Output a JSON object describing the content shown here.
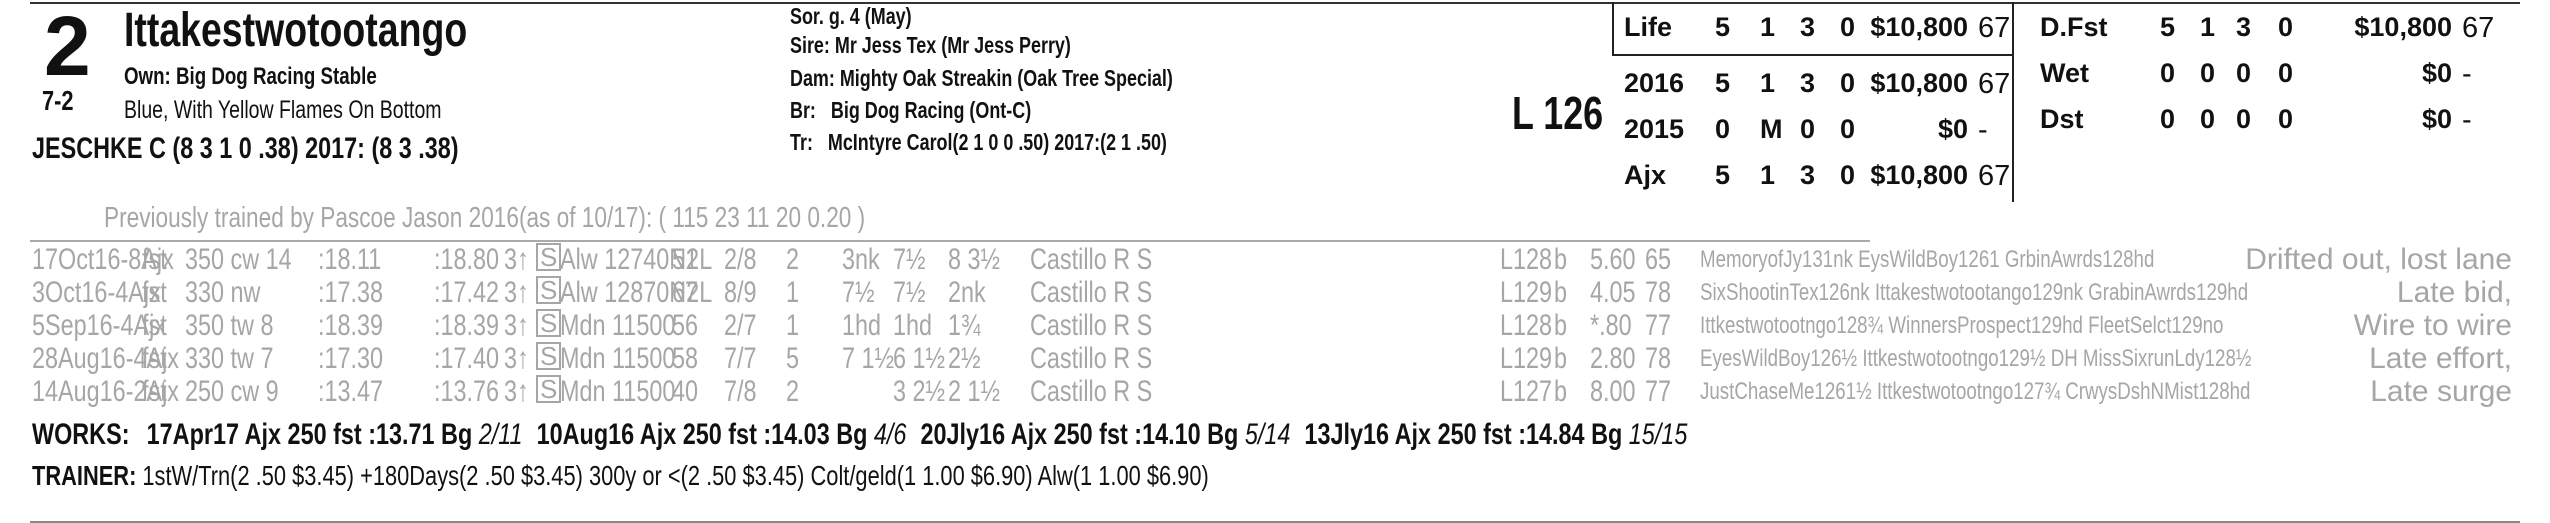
{
  "horse": {
    "program_number": "2",
    "name": "Ittakestwotootango",
    "odds": "7-2",
    "owner": "Own: Big Dog Racing Stable",
    "silks": "Blue, With Yellow Flames On Bottom",
    "jockey": "JESCHKE C (8 3 1 0 .38) 2017: (8 3 .38)"
  },
  "breeding": {
    "sex_age": "Sor. g. 4 (May)",
    "sire_label": "Sire:",
    "sire": "Mr Jess Tex (Mr Jess Perry)",
    "dam_label": "Dam:",
    "dam": "Mighty Oak Streakin (Oak Tree Special)",
    "breeder_label": "Br:",
    "breeder": "Big Dog Racing (Ont-C)",
    "trainer_label": "Tr:",
    "trainer": "McIntyre Carol(2 1 0 0 .50)  2017:(2 1 .50)"
  },
  "weight": "L 126",
  "stats_left": [
    {
      "label": "Life",
      "starts": "5",
      "w": "1",
      "p": "3",
      "s": "0",
      "earnings": "$10,800",
      "speed": "67"
    },
    {
      "label": "2016",
      "starts": "5",
      "w": "1",
      "p": "3",
      "s": "0",
      "earnings": "$10,800",
      "speed": "67"
    },
    {
      "label": "2015",
      "starts": "0",
      "w": "M",
      "p": "0",
      "s": "0",
      "earnings": "$0",
      "speed": "-"
    },
    {
      "label": "Ajx",
      "starts": "5",
      "w": "1",
      "p": "3",
      "s": "0",
      "earnings": "$10,800",
      "speed": "67"
    }
  ],
  "stats_right": [
    {
      "label": "D.Fst",
      "starts": "5",
      "w": "1",
      "p": "3",
      "s": "0",
      "earnings": "$10,800",
      "speed": "67"
    },
    {
      "label": "Wet",
      "starts": "0",
      "w": "0",
      "p": "0",
      "s": "0",
      "earnings": "$0",
      "speed": "-"
    },
    {
      "label": "Dst",
      "starts": "0",
      "w": "0",
      "p": "0",
      "s": "0",
      "earnings": "$0",
      "speed": "-"
    }
  ],
  "previously_trained": "Previously trained by Pascoe Jason 2016(as of 10/17): ( 115 23 11 20 0.20 )",
  "past_performances": [
    {
      "date": "17Oct16-8Ajx",
      "surf": "fst",
      "dist": "350 cw 14",
      "t1": ":18.11",
      "t2": ":18.80",
      "age": "3↑",
      "cls": "S",
      "race": "Alw 12740N2L",
      "rating": "51",
      "pp": "2/8",
      "st": "2",
      "c1": "3nk",
      "c2": "7½",
      "fin": "8 3½",
      "jockey": "Castillo R S",
      "wt": "L128",
      "med": "b",
      "odds": "5.60",
      "spd": "65",
      "comment_line": "MemoryofJy131nk EysWildBoy1261 GrbinAwrds128hd",
      "note": "Drifted out, lost lane"
    },
    {
      "date": "3Oct16-4Ajx",
      "surf": "fst",
      "dist": "330 nw",
      "t1": ":17.38",
      "t2": ":17.42",
      "age": "3↑",
      "cls": "S",
      "race": "Alw 12870N2L",
      "rating": "67",
      "pp": "8/9",
      "st": "1",
      "c1": "7½",
      "c2": "7½",
      "fin": "2nk",
      "jockey": "Castillo R S",
      "wt": "L129",
      "med": "b",
      "odds": "4.05",
      "spd": "78",
      "comment_line": "SixShootinTex126nk Ittakestwotootango129nk GrabinAwrds129hd",
      "note": "Late bid,"
    },
    {
      "date": "5Sep16-4Ajx",
      "surf": "fst",
      "dist": "350 tw 8",
      "t1": ":18.39",
      "t2": ":18.39",
      "age": "3↑",
      "cls": "S",
      "race": "Mdn 11500",
      "rating": "56",
      "pp": "2/7",
      "st": "1",
      "c1": "1hd",
      "c2": "1hd",
      "fin": "1¾",
      "jockey": "Castillo R S",
      "wt": "L128",
      "med": "b",
      "odds": "*.80",
      "spd": "77",
      "comment_line": "Ittkestwotootngo128¾ WinnersProspect129hd FleetSelct129no",
      "note": "Wire to wire"
    },
    {
      "date": "28Aug16-4Ajx",
      "surf": "fst",
      "dist": "330 tw 7",
      "t1": ":17.30",
      "t2": ":17.40",
      "age": "3↑",
      "cls": "S",
      "race": "Mdn 11500",
      "rating": "58",
      "pp": "7/7",
      "st": "5",
      "c1": "7 1½",
      "c2": "6 1½",
      "fin": "2½",
      "jockey": "Castillo R S",
      "wt": "L129",
      "med": "b",
      "odds": "2.80",
      "spd": "78",
      "comment_line": "EyesWildBoy126½ Ittkestwotootngo129½ DH MissSixrunLdy128½",
      "note": "Late effort,"
    },
    {
      "date": "14Aug16-2Ajx",
      "surf": "fst",
      "dist": "250 cw 9",
      "t1": ":13.47",
      "t2": ":13.76",
      "age": "3↑",
      "cls": "S",
      "race": "Mdn 11500",
      "rating": "40",
      "pp": "7/8",
      "st": "2",
      "c1": "",
      "c2": "3 2½",
      "fin": "2 1½",
      "jockey": "Castillo R S",
      "wt": "L127",
      "med": "b",
      "odds": "8.00",
      "spd": "77",
      "comment_line": "JustChaseMe1261½ Ittkestwotootngo127¾ CrwysDshNMist128hd",
      "note": "Late surge"
    }
  ],
  "works": {
    "label": "WORKS:",
    "items": [
      {
        "date": "17Apr17",
        "track": "Ajx",
        "dist": "250 fst",
        "time": ":13.71",
        "grade": "Bg",
        "rank": "2/11"
      },
      {
        "date": "10Aug16",
        "track": "Ajx",
        "dist": "250 fst",
        "time": ":14.03",
        "grade": "Bg",
        "rank": "4/6"
      },
      {
        "date": "20Jly16",
        "track": "Ajx",
        "dist": "250 fst",
        "time": ":14.10",
        "grade": "Bg",
        "rank": "5/14"
      },
      {
        "date": "13Jly16",
        "track": "Ajx",
        "dist": "250 fst",
        "time": ":14.84",
        "grade": "Bg",
        "rank": "15/15"
      }
    ]
  },
  "trainer_stats": {
    "label": "TRAINER:",
    "text": "1stW/Trn(2 .50 $3.45) +180Days(2 .50 $3.45) 300y or <(2 .50 $3.45) Colt/geld(1 1.00 $6.90) Alw(1 1.00 $6.90)"
  }
}
